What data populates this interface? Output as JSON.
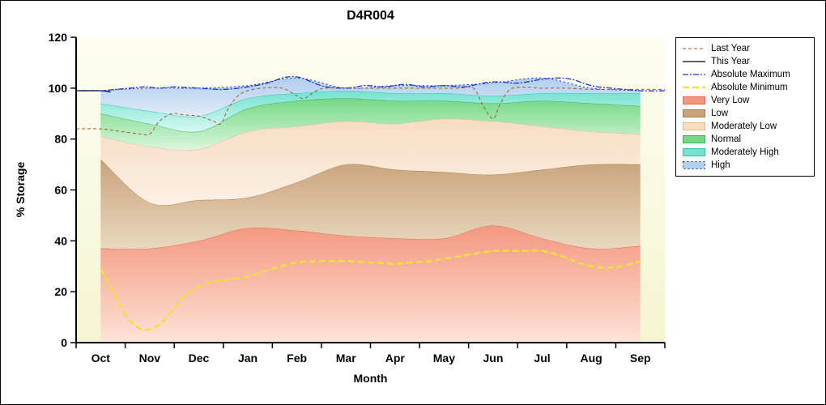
{
  "chart_data": {
    "type": "area",
    "title": "D4R004",
    "xlabel": "Month",
    "ylabel": "% Storage",
    "ylim": [
      0,
      120
    ],
    "yticks": [
      0,
      20,
      40,
      60,
      80,
      100,
      120
    ],
    "categories": [
      "Oct",
      "Nov",
      "Dec",
      "Jan",
      "Feb",
      "Mar",
      "Apr",
      "May",
      "Jun",
      "Jul",
      "Aug",
      "Sep"
    ],
    "plot_bg_top": "#FDFDF1",
    "plot_bg_bottom": "#F5F5D2",
    "bands": [
      {
        "name": "Very Low",
        "color": "#F5977F",
        "light": "#FCE3D8",
        "border": "#E06A50",
        "top": [
          37,
          37,
          40,
          45,
          44,
          42,
          41,
          41,
          46,
          41,
          37,
          38
        ]
      },
      {
        "name": "Low",
        "color": "#C9A37A",
        "light": "#E9D8C0",
        "border": "#A87C4F",
        "top": [
          72,
          55,
          56,
          57,
          63,
          70,
          68,
          67,
          66,
          68,
          70,
          70
        ]
      },
      {
        "name": "Moderately Low",
        "color": "#F8DCC2",
        "light": "#FCF0E4",
        "border": "#DDBE9B",
        "top": [
          81,
          77,
          76,
          83,
          85,
          87,
          86,
          88,
          87,
          85,
          83,
          82
        ]
      },
      {
        "name": "Normal",
        "color": "#76D785",
        "light": "#DBF6DE",
        "border": "#3FAF58",
        "top": [
          90,
          86,
          83,
          92,
          95,
          96,
          95,
          95,
          94,
          95,
          94,
          93
        ]
      },
      {
        "name": "Moderately High",
        "color": "#74E2CF",
        "light": "#D8F8F3",
        "border": "#38C3AC",
        "top": [
          94,
          91,
          89,
          96,
          98,
          99,
          98,
          98,
          97,
          98,
          98,
          98
        ]
      },
      {
        "name": "High",
        "color": "#B1CEEE",
        "light": "#E0ECF9",
        "border": "#2233CC",
        "edge_dash": "2 3",
        "top": [
          99,
          100,
          100,
          101,
          104,
          100,
          101,
          101,
          102,
          104,
          100,
          99
        ]
      }
    ],
    "lines": [
      {
        "name": "Last Year",
        "color": "#9A5C28",
        "width": 1,
        "dash": "4 3",
        "x": [
          -0.5,
          0,
          0.4,
          0.8,
          1.0,
          1.2,
          1.45,
          1.7,
          2.0,
          2.3,
          2.45,
          2.6,
          2.8,
          3.0,
          3.3,
          3.7,
          4.0,
          4.15,
          4.4,
          4.6,
          5.0,
          5.5,
          6.0,
          6.5,
          7.0,
          7.3,
          7.6,
          7.8,
          8.0,
          8.15,
          8.4,
          9.0,
          9.5,
          10.0,
          10.5,
          11.0,
          11.5
        ],
        "y": [
          84,
          84,
          83,
          82,
          82,
          87,
          90,
          89.5,
          89,
          87,
          86,
          92,
          97,
          99,
          100,
          100,
          97,
          96,
          99,
          100,
          100,
          100,
          100,
          100,
          100,
          100,
          100,
          93,
          88,
          94,
          100,
          100,
          100,
          99.5,
          99.5,
          99.5,
          99.5
        ]
      },
      {
        "name": "This Year",
        "color": "#000000",
        "width": 1.3,
        "dash": "",
        "x": [
          -0.5,
          0,
          0.2
        ],
        "y": [
          99,
          99,
          98.5
        ]
      },
      {
        "name": "Absolute Maximum",
        "color": "#2233CC",
        "width": 1.3,
        "dash": "7 2 2 2",
        "x": [
          -0.5,
          0,
          0.3,
          0.6,
          0.9,
          1.2,
          1.5,
          2.0,
          2.5,
          3.0,
          3.4,
          3.7,
          3.9,
          4.1,
          4.35,
          4.6,
          5.0,
          5.4,
          5.8,
          6.2,
          6.6,
          7.0,
          7.4,
          7.8,
          8.1,
          8.5,
          9.0,
          9.3,
          9.6,
          10.0,
          10.4,
          11.0,
          11.5
        ],
        "y": [
          99,
          99,
          99.5,
          100,
          100.5,
          100,
          100.5,
          100,
          99.5,
          100.5,
          102,
          104,
          104.5,
          104,
          102,
          100.5,
          100,
          101,
          100.5,
          101.5,
          100.5,
          101,
          100.5,
          102,
          102.5,
          102,
          103.5,
          104,
          103.5,
          101,
          100,
          99,
          99
        ]
      },
      {
        "name": "Absolute Minimum",
        "color": "#EFE136",
        "width": 2.5,
        "dash": "8 4",
        "x": [
          0,
          0.25,
          0.5,
          0.75,
          0.95,
          1.15,
          1.4,
          1.7,
          2.0,
          2.3,
          2.7,
          3.0,
          3.5,
          4.0,
          4.5,
          5.0,
          5.5,
          6.0,
          6.3,
          6.7,
          7.0,
          7.5,
          8.0,
          8.5,
          9.0,
          9.4,
          9.8,
          10.2,
          10.6,
          11.0
        ],
        "y": [
          29,
          20,
          11,
          6,
          5,
          6.5,
          11,
          18,
          22,
          24,
          25,
          26,
          29,
          31.5,
          32,
          32,
          31.5,
          31,
          31.5,
          32,
          33,
          34.5,
          36,
          36,
          36,
          34,
          31,
          29.5,
          30,
          32
        ]
      }
    ]
  }
}
